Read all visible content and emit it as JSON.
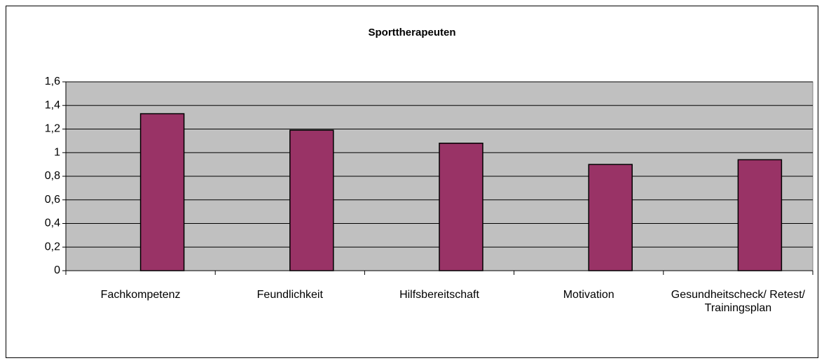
{
  "chart_data": {
    "type": "bar",
    "title": "Sporttherapeuten",
    "categories": [
      "Fachkompetenz",
      "Feundlichkeit",
      "Hilfsbereitschaft",
      "Motivation",
      "Gesundheitscheck/ Retest/ Trainingsplan"
    ],
    "values": [
      1.33,
      1.19,
      1.08,
      0.9,
      0.94
    ],
    "color": "#993366",
    "ylim": [
      0,
      1.6
    ],
    "yticks": [
      0,
      {
        "value": 0.2,
        "label": "0,2"
      },
      {
        "value": 0.4,
        "label": "0,4"
      },
      {
        "value": 0.6,
        "label": "0,6"
      },
      {
        "value": 0.8,
        "label": "0,8"
      },
      1,
      {
        "value": 1.2,
        "label": "1,2"
      },
      {
        "value": 1.4,
        "label": "1,4"
      },
      {
        "value": 1.6,
        "label": "1,6"
      }
    ],
    "grid": true
  }
}
